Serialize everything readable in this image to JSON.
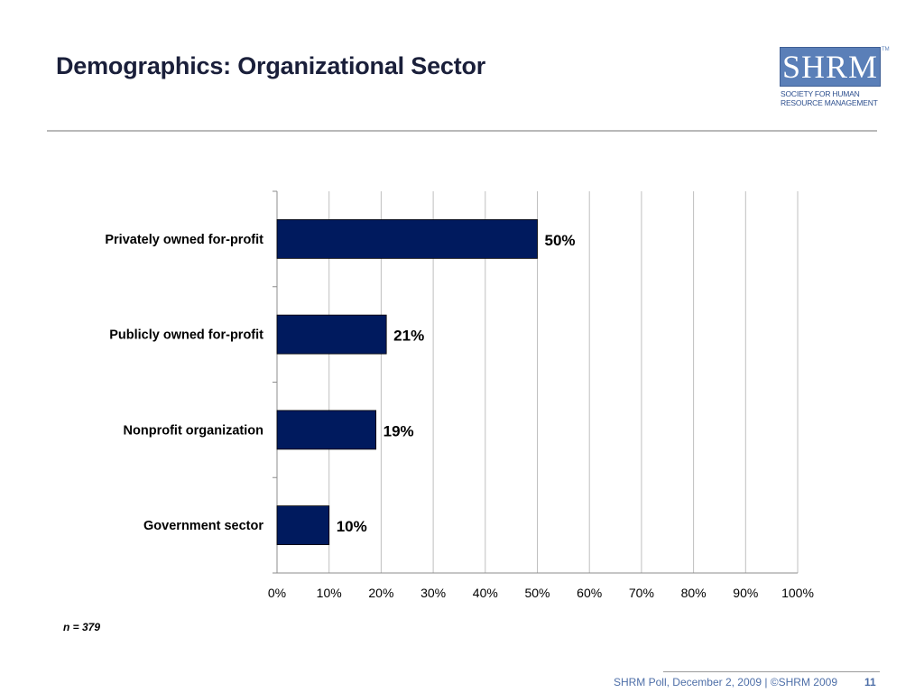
{
  "slide": {
    "title": "Demographics: Organizational Sector",
    "note": "n = 379",
    "footer": "SHRM Poll, December 2, 2009 | ©SHRM 2009",
    "page_number": "11"
  },
  "logo": {
    "letters": "SHRM",
    "line1": "SOCIETY FOR HUMAN",
    "line2": "RESOURCE MANAGEMENT"
  },
  "colors": {
    "bar": "#001a5e",
    "logo_blue": "#5a7fb8",
    "gridline": "#bfbfbf",
    "footer_text": "#4e6fa8"
  },
  "chart_data": {
    "type": "bar",
    "orientation": "horizontal",
    "categories": [
      "Privately owned for-profit",
      "Publicly owned for-profit",
      "Nonprofit organization",
      "Government sector"
    ],
    "values": [
      50,
      21,
      19,
      10
    ],
    "data_labels": [
      "50%",
      "21%",
      "19%",
      "10%"
    ],
    "xlim": [
      0,
      100
    ],
    "x_ticks": [
      0,
      10,
      20,
      30,
      40,
      50,
      60,
      70,
      80,
      90,
      100
    ],
    "x_tick_labels": [
      "0%",
      "10%",
      "20%",
      "30%",
      "40%",
      "50%",
      "60%",
      "70%",
      "80%",
      "90%",
      "100%"
    ],
    "grid": true,
    "legend": "none"
  }
}
